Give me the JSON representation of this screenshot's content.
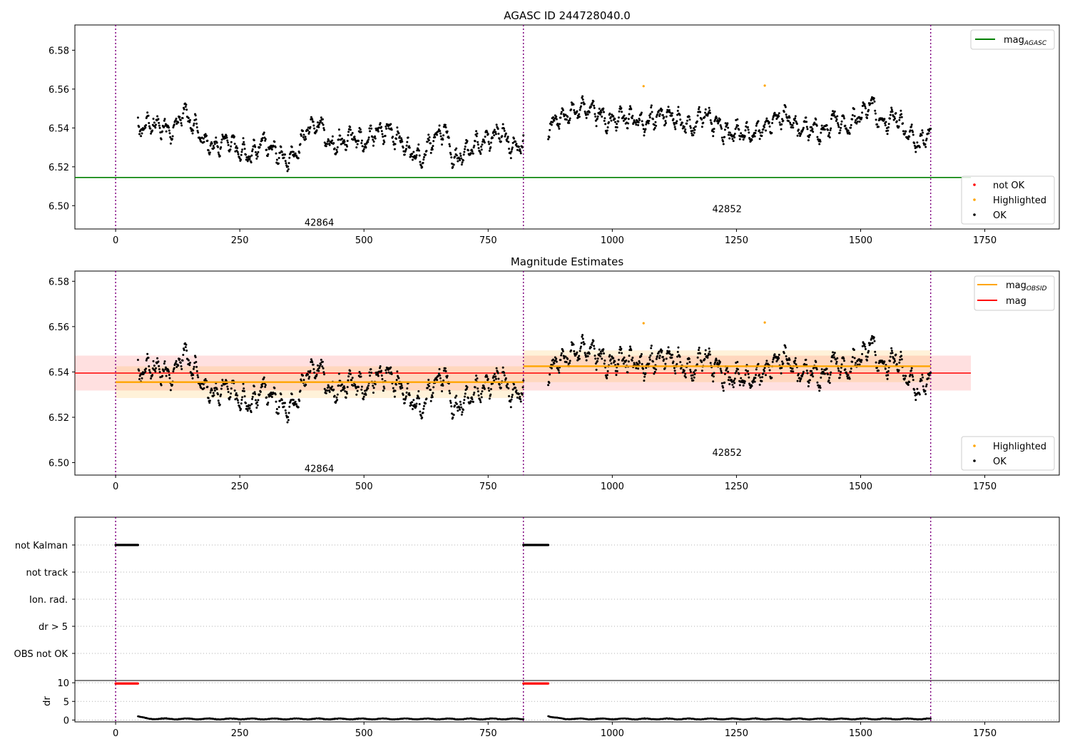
{
  "chart_data": [
    {
      "type": "scatter",
      "title": "AGASC ID 244728040.0",
      "xlim": [
        -82,
        1900
      ],
      "ylim": [
        6.488,
        6.593
      ],
      "xticks": [
        0,
        250,
        500,
        750,
        1000,
        1250,
        1500,
        1750
      ],
      "yticks": [
        6.5,
        6.52,
        6.54,
        6.56,
        6.58
      ],
      "obs_boundaries": [
        0,
        821,
        1641
      ],
      "obs_labels": [
        {
          "text": "42864",
          "x": 410,
          "y": 6.4915
        },
        {
          "text": "42852",
          "x": 1231,
          "y": 6.4985
        }
      ],
      "mag_agasc": {
        "value": 6.5145,
        "x_range": [
          -82,
          1722
        ],
        "color": "#008000"
      },
      "series": [
        {
          "name": "OK",
          "color": "#000000",
          "segments": [
            {
              "x_start": 45,
              "x_end": 821,
              "mean": 6.5365,
              "knots": [
                6.54,
                6.542,
                6.541,
                6.538,
                6.548,
                6.541,
                6.532,
                6.53,
                6.534,
                6.528,
                6.526,
                6.533,
                6.529,
                6.524,
                6.527,
                6.54,
                6.542,
                6.531,
                6.533,
                6.536,
                6.532,
                6.538,
                6.539,
                6.534,
                6.528,
                6.524,
                6.534,
                6.538,
                6.523,
                6.528,
                6.532,
                6.535,
                6.538,
                6.53,
                6.532
              ]
            },
            {
              "x_start": 871,
              "x_end": 1641,
              "mean": 6.5425,
              "knots": [
                6.54,
                6.545,
                6.548,
                6.55,
                6.549,
                6.543,
                6.546,
                6.545,
                6.542,
                6.546,
                6.547,
                6.544,
                6.54,
                6.547,
                6.543,
                6.537,
                6.538,
                6.536,
                6.54,
                6.545,
                6.546,
                6.539,
                6.54,
                6.538,
                6.545,
                6.54,
                6.546,
                6.552,
                6.542,
                6.546,
                6.538,
                6.532,
                6.538
              ]
            }
          ]
        },
        {
          "name": "Highlighted",
          "color": "#ffa500",
          "points": [
            [
              1063,
              6.5615
            ],
            [
              1307,
              6.5618
            ]
          ]
        },
        {
          "name": "not OK",
          "color": "#ff0000",
          "points": []
        }
      ],
      "legend_lines": [
        {
          "name": "mag_AGASC",
          "base": "mag",
          "sub": "AGASC",
          "color": "#008000"
        }
      ],
      "legend_points": [
        {
          "name": "not OK",
          "color": "#ff0000"
        },
        {
          "name": "Highlighted",
          "color": "#ffa500"
        },
        {
          "name": "OK",
          "color": "#000000"
        }
      ]
    },
    {
      "type": "scatter",
      "title": "Magnitude Estimates",
      "xlim": [
        -82,
        1900
      ],
      "ylim": [
        6.4945,
        6.5845
      ],
      "xticks": [
        0,
        250,
        500,
        750,
        1000,
        1250,
        1500,
        1750
      ],
      "yticks": [
        6.5,
        6.52,
        6.54,
        6.56,
        6.58
      ],
      "obs_boundaries": [
        0,
        821,
        1641
      ],
      "obs_labels": [
        {
          "text": "42864",
          "x": 410,
          "y": 6.4975
        },
        {
          "text": "42852",
          "x": 1231,
          "y": 6.5045
        }
      ],
      "mag": {
        "value": 6.5395,
        "band": [
          6.5318,
          6.5472
        ],
        "x_range": [
          -82,
          1722
        ],
        "color": "#ff0000"
      },
      "mag_obsid": [
        {
          "x_range": [
            0,
            821
          ],
          "value": 6.5355,
          "band": [
            6.5285,
            6.5425
          ]
        },
        {
          "x_range": [
            821,
            1641
          ],
          "value": 6.5425,
          "band": [
            6.5355,
            6.5495
          ]
        }
      ],
      "series": [
        {
          "name": "OK",
          "color": "#000000",
          "same_as_panel": 0
        },
        {
          "name": "Highlighted",
          "color": "#ffa500",
          "points": [
            [
              1063,
              6.5615
            ],
            [
              1307,
              6.5618
            ]
          ]
        }
      ],
      "legend_lines": [
        {
          "name": "mag_OBSID",
          "base": "mag",
          "sub": "OBSID",
          "color": "#ffa500"
        },
        {
          "name": "mag",
          "base": "mag",
          "sub": "",
          "color": "#ff0000"
        }
      ],
      "legend_points": [
        {
          "name": "Highlighted",
          "color": "#ffa500"
        },
        {
          "name": "OK",
          "color": "#000000"
        }
      ]
    },
    {
      "type": "scatter",
      "title": "",
      "xlim": [
        -82,
        1900
      ],
      "categories": [
        "not Kalman",
        "not track",
        "Ion. rad.",
        "dr > 5",
        "OBS not OK"
      ],
      "flag_ranges": [
        {
          "category": "not Kalman",
          "x_start": 0,
          "x_end": 45
        },
        {
          "category": "not Kalman",
          "x_start": 821,
          "x_end": 871
        }
      ],
      "obs_boundaries": [
        0,
        821,
        1641
      ]
    },
    {
      "type": "scatter",
      "title": "",
      "ylabel": "dr",
      "xlim": [
        -82,
        1900
      ],
      "ylim": [
        -0.5,
        10.6
      ],
      "yticks": [
        0,
        5,
        10
      ],
      "xticks": [
        0,
        250,
        500,
        750,
        1000,
        1250,
        1500,
        1750
      ],
      "obs_boundaries": [
        0,
        821,
        1641
      ],
      "dr_capped": [
        {
          "x_start": 0,
          "x_end": 45,
          "value": 9.8,
          "color": "#ff0000"
        },
        {
          "x_start": 821,
          "x_end": 871,
          "value": 9.8,
          "color": "#ff0000"
        }
      ],
      "dr_series": [
        {
          "x_start": 45,
          "x_end": 821,
          "start_value": 1.0,
          "level": 0.3
        },
        {
          "x_start": 871,
          "x_end": 1641,
          "start_value": 1.2,
          "level": 0.3
        }
      ]
    }
  ]
}
